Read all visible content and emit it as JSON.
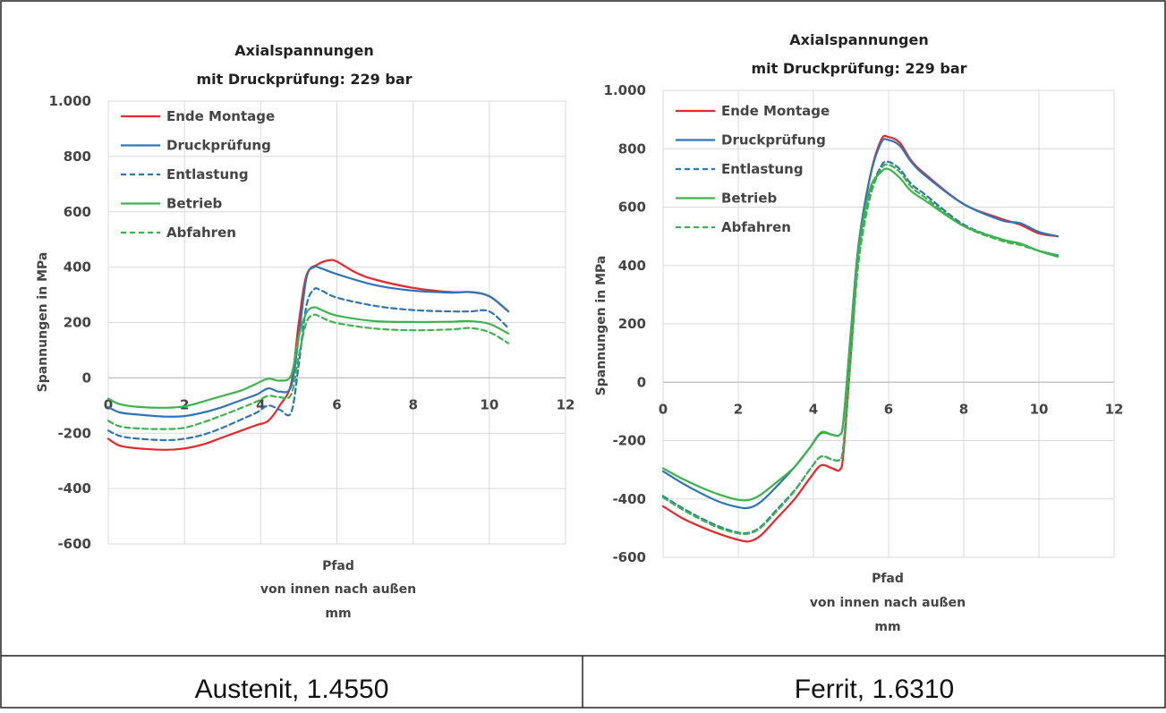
{
  "captions": {
    "left": "Austenit, 1.4550",
    "right": "Ferrit, 1.6310"
  },
  "chart_data": [
    {
      "type": "line",
      "title": "Axialspannungen",
      "subtitle": "mit Druckprüfung: 229 bar",
      "xlabel": [
        "Pfad",
        "von innen nach außen",
        "mm"
      ],
      "ylabel": "Spannungen in MPa",
      "xlim": [
        0,
        12
      ],
      "ylim": [
        -600,
        1000
      ],
      "xticks": [
        0,
        2,
        4,
        6,
        8,
        10,
        12
      ],
      "yticks": [
        -600,
        -400,
        -200,
        0,
        200,
        400,
        600,
        800,
        1000
      ],
      "ytick_labels": [
        "-600",
        "-400",
        "-200",
        "0",
        "200",
        "400",
        "600",
        "800",
        "1.000"
      ],
      "grid": true,
      "legend_position": "top-left",
      "series": [
        {
          "name": "Ende Montage",
          "color": "#e8262b",
          "dashed": false,
          "x": [
            0,
            0.3,
            0.8,
            1.5,
            2.0,
            2.5,
            3.0,
            3.5,
            3.9,
            4.2,
            4.5,
            4.8,
            5.0,
            5.2,
            5.5,
            5.8,
            6.0,
            6.5,
            7.0,
            8.0,
            9.0,
            9.5,
            10.0,
            10.5
          ],
          "y": [
            -220,
            -245,
            -255,
            -260,
            -255,
            -240,
            -215,
            -190,
            -170,
            -155,
            -100,
            -20,
            200,
            370,
            410,
            425,
            420,
            380,
            355,
            325,
            310,
            310,
            295,
            240
          ]
        },
        {
          "name": "Druckprüfung",
          "color": "#2e75b6",
          "dashed": false,
          "x": [
            0,
            0.3,
            0.8,
            1.5,
            2.0,
            2.5,
            3.0,
            3.5,
            3.9,
            4.2,
            4.5,
            4.8,
            5.0,
            5.2,
            5.4,
            5.6,
            6.0,
            7.0,
            8.0,
            9.0,
            9.5,
            10.0,
            10.5
          ],
          "y": [
            -105,
            -125,
            -133,
            -140,
            -138,
            -125,
            -105,
            -80,
            -60,
            -38,
            -50,
            -30,
            150,
            360,
            400,
            395,
            375,
            335,
            315,
            308,
            310,
            295,
            240
          ]
        },
        {
          "name": "Entlastung",
          "color": "#2e75b6",
          "dashed": true,
          "x": [
            0,
            0.3,
            0.8,
            1.5,
            2.0,
            2.5,
            3.0,
            3.5,
            3.9,
            4.2,
            4.5,
            4.8,
            5.0,
            5.2,
            5.4,
            5.6,
            6.0,
            7.0,
            8.0,
            9.0,
            9.5,
            10.0,
            10.5
          ],
          "y": [
            -190,
            -210,
            -220,
            -225,
            -220,
            -205,
            -180,
            -150,
            -125,
            -100,
            -115,
            -125,
            50,
            260,
            320,
            315,
            290,
            260,
            245,
            240,
            240,
            240,
            180
          ]
        },
        {
          "name": "Betrieb",
          "color": "#3cb44b",
          "dashed": false,
          "x": [
            0,
            0.3,
            0.8,
            1.5,
            2.0,
            2.5,
            3.0,
            3.5,
            3.9,
            4.2,
            4.5,
            4.8,
            5.0,
            5.2,
            5.4,
            5.6,
            6.0,
            7.0,
            8.0,
            9.0,
            9.5,
            10.0,
            10.5
          ],
          "y": [
            -75,
            -95,
            -105,
            -108,
            -103,
            -85,
            -65,
            -45,
            -20,
            -3,
            -10,
            10,
            150,
            235,
            255,
            245,
            225,
            205,
            202,
            203,
            205,
            195,
            160
          ]
        },
        {
          "name": "Abfahren",
          "color": "#3cb44b",
          "dashed": true,
          "x": [
            0,
            0.3,
            0.8,
            1.5,
            2.0,
            2.5,
            3.0,
            3.5,
            3.9,
            4.2,
            4.5,
            4.8,
            5.0,
            5.2,
            5.4,
            5.6,
            6.0,
            7.0,
            8.0,
            9.0,
            9.5,
            10.0,
            10.5
          ],
          "y": [
            -155,
            -175,
            -183,
            -185,
            -180,
            -160,
            -135,
            -108,
            -85,
            -65,
            -70,
            -60,
            80,
            200,
            228,
            218,
            198,
            178,
            172,
            175,
            180,
            165,
            125
          ]
        }
      ]
    },
    {
      "type": "line",
      "title": "Axialspannungen",
      "subtitle": "mit Druckprüfung: 229 bar",
      "xlabel": [
        "Pfad",
        "von innen nach außen",
        "mm"
      ],
      "ylabel": "Spannungen in MPa",
      "xlim": [
        0,
        12
      ],
      "ylim": [
        -600,
        1000
      ],
      "xticks": [
        0,
        2,
        4,
        6,
        8,
        10,
        12
      ],
      "yticks": [
        -600,
        -400,
        -200,
        0,
        200,
        400,
        600,
        800,
        1000
      ],
      "ytick_labels": [
        "-600",
        "-400",
        "-200",
        "0",
        "200",
        "400",
        "600",
        "800",
        "1.000"
      ],
      "grid": true,
      "legend_position": "top-left",
      "series": [
        {
          "name": "Ende Montage",
          "color": "#e8262b",
          "dashed": false,
          "x": [
            0,
            0.5,
            1.0,
            1.5,
            2.0,
            2.3,
            2.6,
            3.0,
            3.5,
            3.9,
            4.2,
            4.5,
            4.7,
            4.8,
            5.0,
            5.2,
            5.5,
            5.8,
            6.0,
            6.3,
            6.6,
            7.0,
            8.0,
            9.0,
            9.5,
            10.0,
            10.5
          ],
          "y": [
            -425,
            -465,
            -495,
            -520,
            -540,
            -545,
            -525,
            -470,
            -400,
            -330,
            -285,
            -295,
            -300,
            -240,
            100,
            450,
            700,
            830,
            840,
            820,
            760,
            710,
            610,
            560,
            540,
            510,
            500
          ]
        },
        {
          "name": "Druckprüfung",
          "color": "#2e75b6",
          "dashed": false,
          "x": [
            0,
            0.5,
            1.0,
            1.5,
            2.0,
            2.3,
            2.6,
            3.0,
            3.5,
            3.9,
            4.2,
            4.5,
            4.7,
            4.8,
            5.0,
            5.2,
            5.5,
            5.8,
            6.0,
            6.3,
            6.6,
            7.0,
            8.0,
            9.0,
            9.5,
            10.0,
            10.5
          ],
          "y": [
            -305,
            -345,
            -380,
            -410,
            -428,
            -430,
            -410,
            -360,
            -290,
            -225,
            -175,
            -180,
            -180,
            -130,
            180,
            470,
            700,
            820,
            830,
            810,
            755,
            705,
            610,
            555,
            545,
            515,
            500
          ]
        },
        {
          "name": "Entlastung",
          "color": "#2e75b6",
          "dashed": true,
          "x": [
            0,
            0.5,
            1.0,
            1.5,
            2.0,
            2.3,
            2.6,
            3.0,
            3.5,
            3.9,
            4.2,
            4.5,
            4.7,
            4.8,
            5.0,
            5.2,
            5.5,
            5.8,
            6.0,
            6.3,
            6.6,
            7.0,
            8.0,
            9.0,
            9.5,
            10.0,
            10.5
          ],
          "y": [
            -390,
            -430,
            -465,
            -495,
            -515,
            -515,
            -495,
            -440,
            -370,
            -300,
            -255,
            -265,
            -265,
            -215,
            100,
            420,
            640,
            740,
            755,
            730,
            680,
            640,
            540,
            490,
            475,
            450,
            435
          ]
        },
        {
          "name": "Betrieb",
          "color": "#3cb44b",
          "dashed": false,
          "x": [
            0,
            0.5,
            1.0,
            1.5,
            2.0,
            2.3,
            2.6,
            3.0,
            3.5,
            3.9,
            4.2,
            4.5,
            4.7,
            4.8,
            5.0,
            5.2,
            5.5,
            5.8,
            6.0,
            6.3,
            6.6,
            7.0,
            8.0,
            9.0,
            9.5,
            10.0,
            10.5
          ],
          "y": [
            -295,
            -330,
            -360,
            -385,
            -403,
            -403,
            -385,
            -345,
            -290,
            -225,
            -172,
            -180,
            -180,
            -130,
            170,
            450,
            660,
            720,
            730,
            700,
            655,
            620,
            535,
            490,
            475,
            450,
            430
          ]
        },
        {
          "name": "Abfahren",
          "color": "#3cb44b",
          "dashed": true,
          "x": [
            0,
            0.5,
            1.0,
            1.5,
            2.0,
            2.3,
            2.6,
            3.0,
            3.5,
            3.9,
            4.2,
            4.5,
            4.7,
            4.8,
            5.0,
            5.2,
            5.5,
            5.8,
            6.0,
            6.3,
            6.6,
            7.0,
            8.0,
            9.0,
            9.5,
            10.0,
            10.5
          ],
          "y": [
            -395,
            -435,
            -470,
            -500,
            -518,
            -518,
            -498,
            -445,
            -372,
            -300,
            -255,
            -265,
            -265,
            -215,
            95,
            410,
            630,
            730,
            745,
            720,
            670,
            630,
            535,
            485,
            470,
            450,
            435
          ]
        }
      ]
    }
  ]
}
